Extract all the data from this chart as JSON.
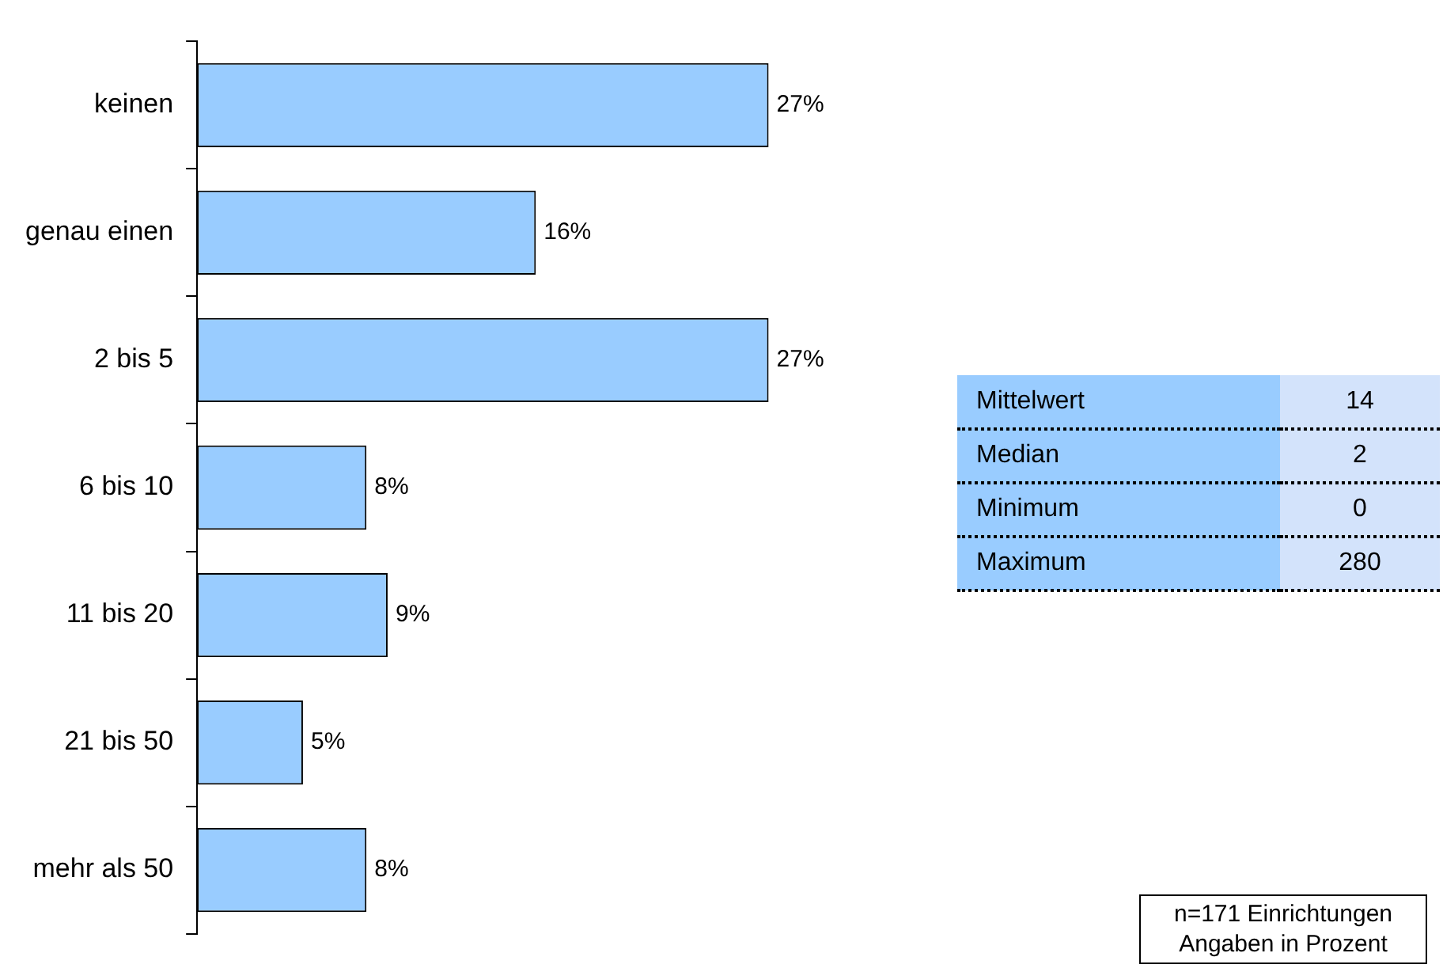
{
  "chart_data": [
    {
      "type": "bar",
      "orientation": "horizontal",
      "categories": [
        "keinen",
        "genau einen",
        "2 bis 5",
        "6 bis 10",
        "11 bis 20",
        "21 bis 50",
        "mehr als 50"
      ],
      "values": [
        27,
        16,
        27,
        8,
        9,
        5,
        8
      ],
      "value_labels": [
        "27%",
        "16%",
        "27%",
        "8%",
        "9%",
        "5%",
        "8%"
      ],
      "color": "#99ccff",
      "legend": false,
      "annotations": [
        "n=171 Einrichtungen",
        "Angaben in Prozent"
      ]
    },
    {
      "type": "other",
      "categories": [
        "Mittelwert",
        "Median",
        "Minimum",
        "Maximum"
      ],
      "values": [
        14,
        2,
        0,
        280
      ],
      "data_labels": true
    }
  ]
}
